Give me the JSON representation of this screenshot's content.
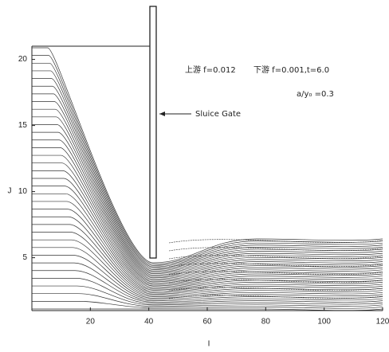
{
  "chart_data": {
    "type": "streamline",
    "x_label": "I",
    "y_label": "J",
    "xlim": [
      0,
      120
    ],
    "xticks": [
      20,
      40,
      60,
      80,
      100,
      120
    ],
    "ylim": [
      1,
      21
    ],
    "yticks": [
      5,
      10,
      15,
      20
    ],
    "annotations": [
      "上游 f=0.012",
      "下游 f=0.001,t=6.0",
      "a/y₀ =0.3",
      "Sluice Gate"
    ],
    "color": "#333333"
  }
}
